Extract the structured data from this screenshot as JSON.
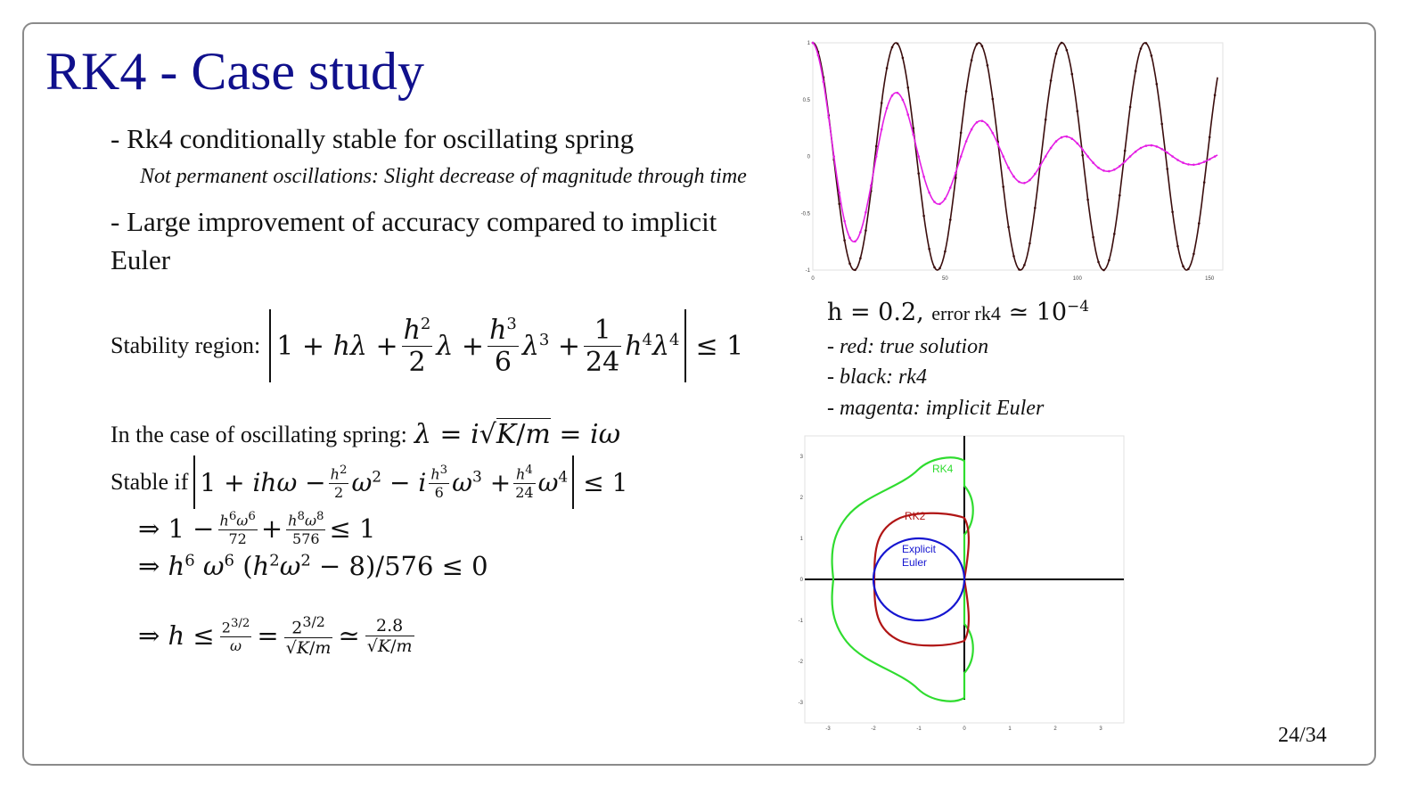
{
  "slide": {
    "title": "RK4 - Case study",
    "bullet1": "- Rk4 conditionally stable for oscillating spring",
    "note": "Not permanent oscillations: Slight decrease of magnitude through time",
    "bullet2_line1": "- Large improvement of accuracy compared to implicit",
    "bullet2_line2": "Euler",
    "stability_label": "Stability region:",
    "case_label": "In the case of oscillating spring:",
    "stable_if_label": "Stable if",
    "page_number": "24/34"
  },
  "caption": {
    "h_value": "h = 0.2",
    "error_label": "error rk4",
    "red": "- red: true solution",
    "black": "- black: rk4",
    "magenta": "- magenta: implicit Euler"
  },
  "chart_data": [
    {
      "type": "line",
      "x_ticks": [
        "0",
        "50",
        "100",
        "150"
      ],
      "y_ticks": [
        "1",
        "0.5",
        "0",
        "-0.5",
        "-1"
      ],
      "xlim": [
        0,
        155
      ],
      "ylim": [
        -1,
        1
      ],
      "series": [
        {
          "color": "#000000",
          "description": "rk4 (and true solution, overlapping)",
          "amplitude": 1.0,
          "period": 31.4,
          "markers": true
        },
        {
          "color": "#e020e0",
          "description": "implicit Euler",
          "amplitude": 1.0,
          "decay_time_constant": 55,
          "period": 32,
          "markers": true
        }
      ],
      "colors": {
        "rk4": "#3a0d0d",
        "implicit_euler": "#e41ee4"
      }
    },
    {
      "type": "line",
      "x_ticks": [
        "-3",
        "-2",
        "-1",
        "0",
        "1",
        "2",
        "3"
      ],
      "y_ticks": [
        "3",
        "2",
        "1",
        "0",
        "-1",
        "-2",
        "-3"
      ],
      "xlim": [
        -3.5,
        3.5
      ],
      "ylim": [
        -3.5,
        3.5
      ],
      "series": [
        {
          "name": "RK4",
          "color": "#2fdc2f"
        },
        {
          "name": "RK2",
          "color": "#b01515"
        },
        {
          "name": "Explicit Euler",
          "color": "#1515d0"
        }
      ],
      "labels": {
        "rk4": "RK4",
        "rk2": "RK2",
        "euler_line1": "Explicit",
        "euler_line2": "Euler"
      }
    }
  ]
}
